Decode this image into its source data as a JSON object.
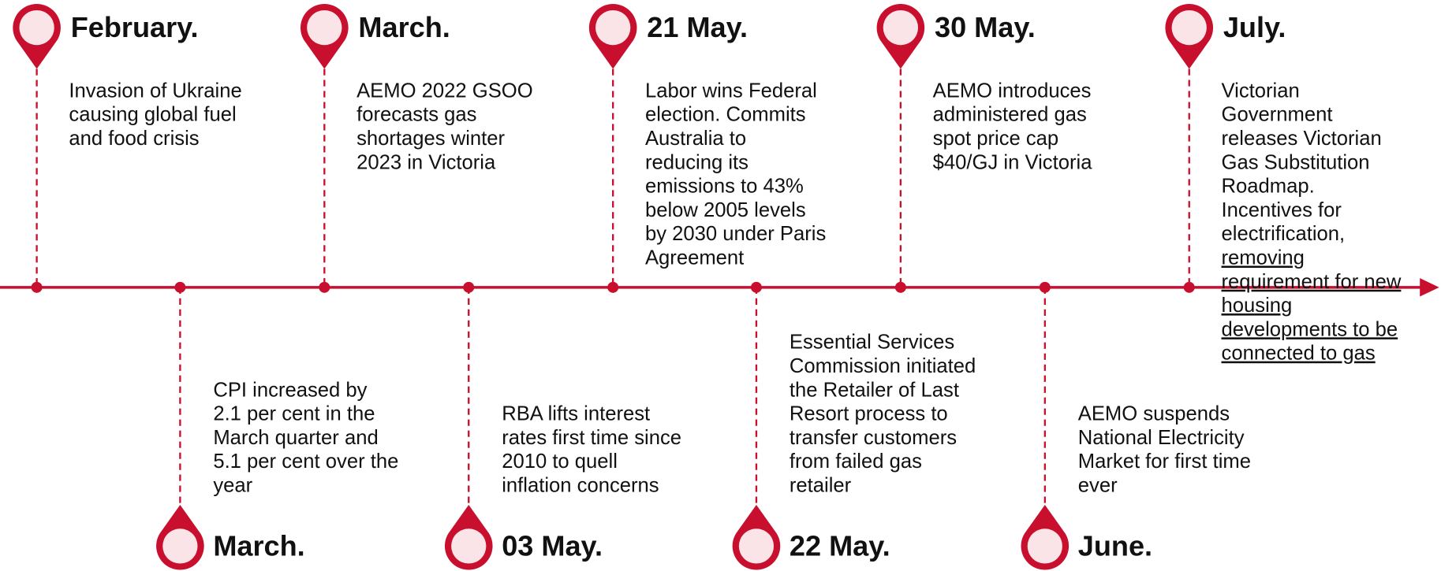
{
  "timeline": {
    "top_events": [
      {
        "date": "February.",
        "text": [
          "Invasion of Ukraine",
          "causing global fuel",
          "and food crisis"
        ]
      },
      {
        "date": "March.",
        "text": [
          "AEMO 2022 GSOO",
          "forecasts gas",
          "shortages winter",
          "2023 in Victoria"
        ]
      },
      {
        "date": "21 May.",
        "text": [
          "Labor wins Federal",
          "election.  Commits",
          "Australia to",
          "reducing its",
          "emissions to 43%",
          "below 2005 levels",
          "by 2030 under Paris",
          "Agreement"
        ]
      },
      {
        "date": "30 May.",
        "text": [
          "AEMO introduces",
          "administered gas",
          "spot price cap",
          "$40/GJ in Victoria"
        ]
      },
      {
        "date": "July.",
        "text": [
          "Victorian",
          "Government",
          "releases Victorian",
          "Gas Substitution",
          "Roadmap.",
          "Incentives for",
          "electrification,"
        ],
        "underlined_text": [
          "removing",
          "requirement for new",
          "housing",
          "developments to be",
          "connected to gas"
        ]
      }
    ],
    "bottom_events": [
      {
        "date": "March.",
        "text": [
          "CPI increased by",
          "2.1 per cent  in the",
          "March quarter and",
          "5.1 per cent over the",
          "year"
        ]
      },
      {
        "date": "03 May.",
        "text": [
          "RBA lifts interest",
          "rates first time since",
          "2010 to quell",
          "inflation concerns"
        ]
      },
      {
        "date": "22 May.",
        "text": [
          "Essential Services",
          "Commission initiated",
          "the Retailer of Last",
          "Resort process to",
          "transfer customers",
          "from failed gas",
          "retailer"
        ]
      },
      {
        "date": "June.",
        "text": [
          "AEMO suspends",
          "National Electricity",
          "Market for first time",
          "ever"
        ]
      }
    ]
  }
}
